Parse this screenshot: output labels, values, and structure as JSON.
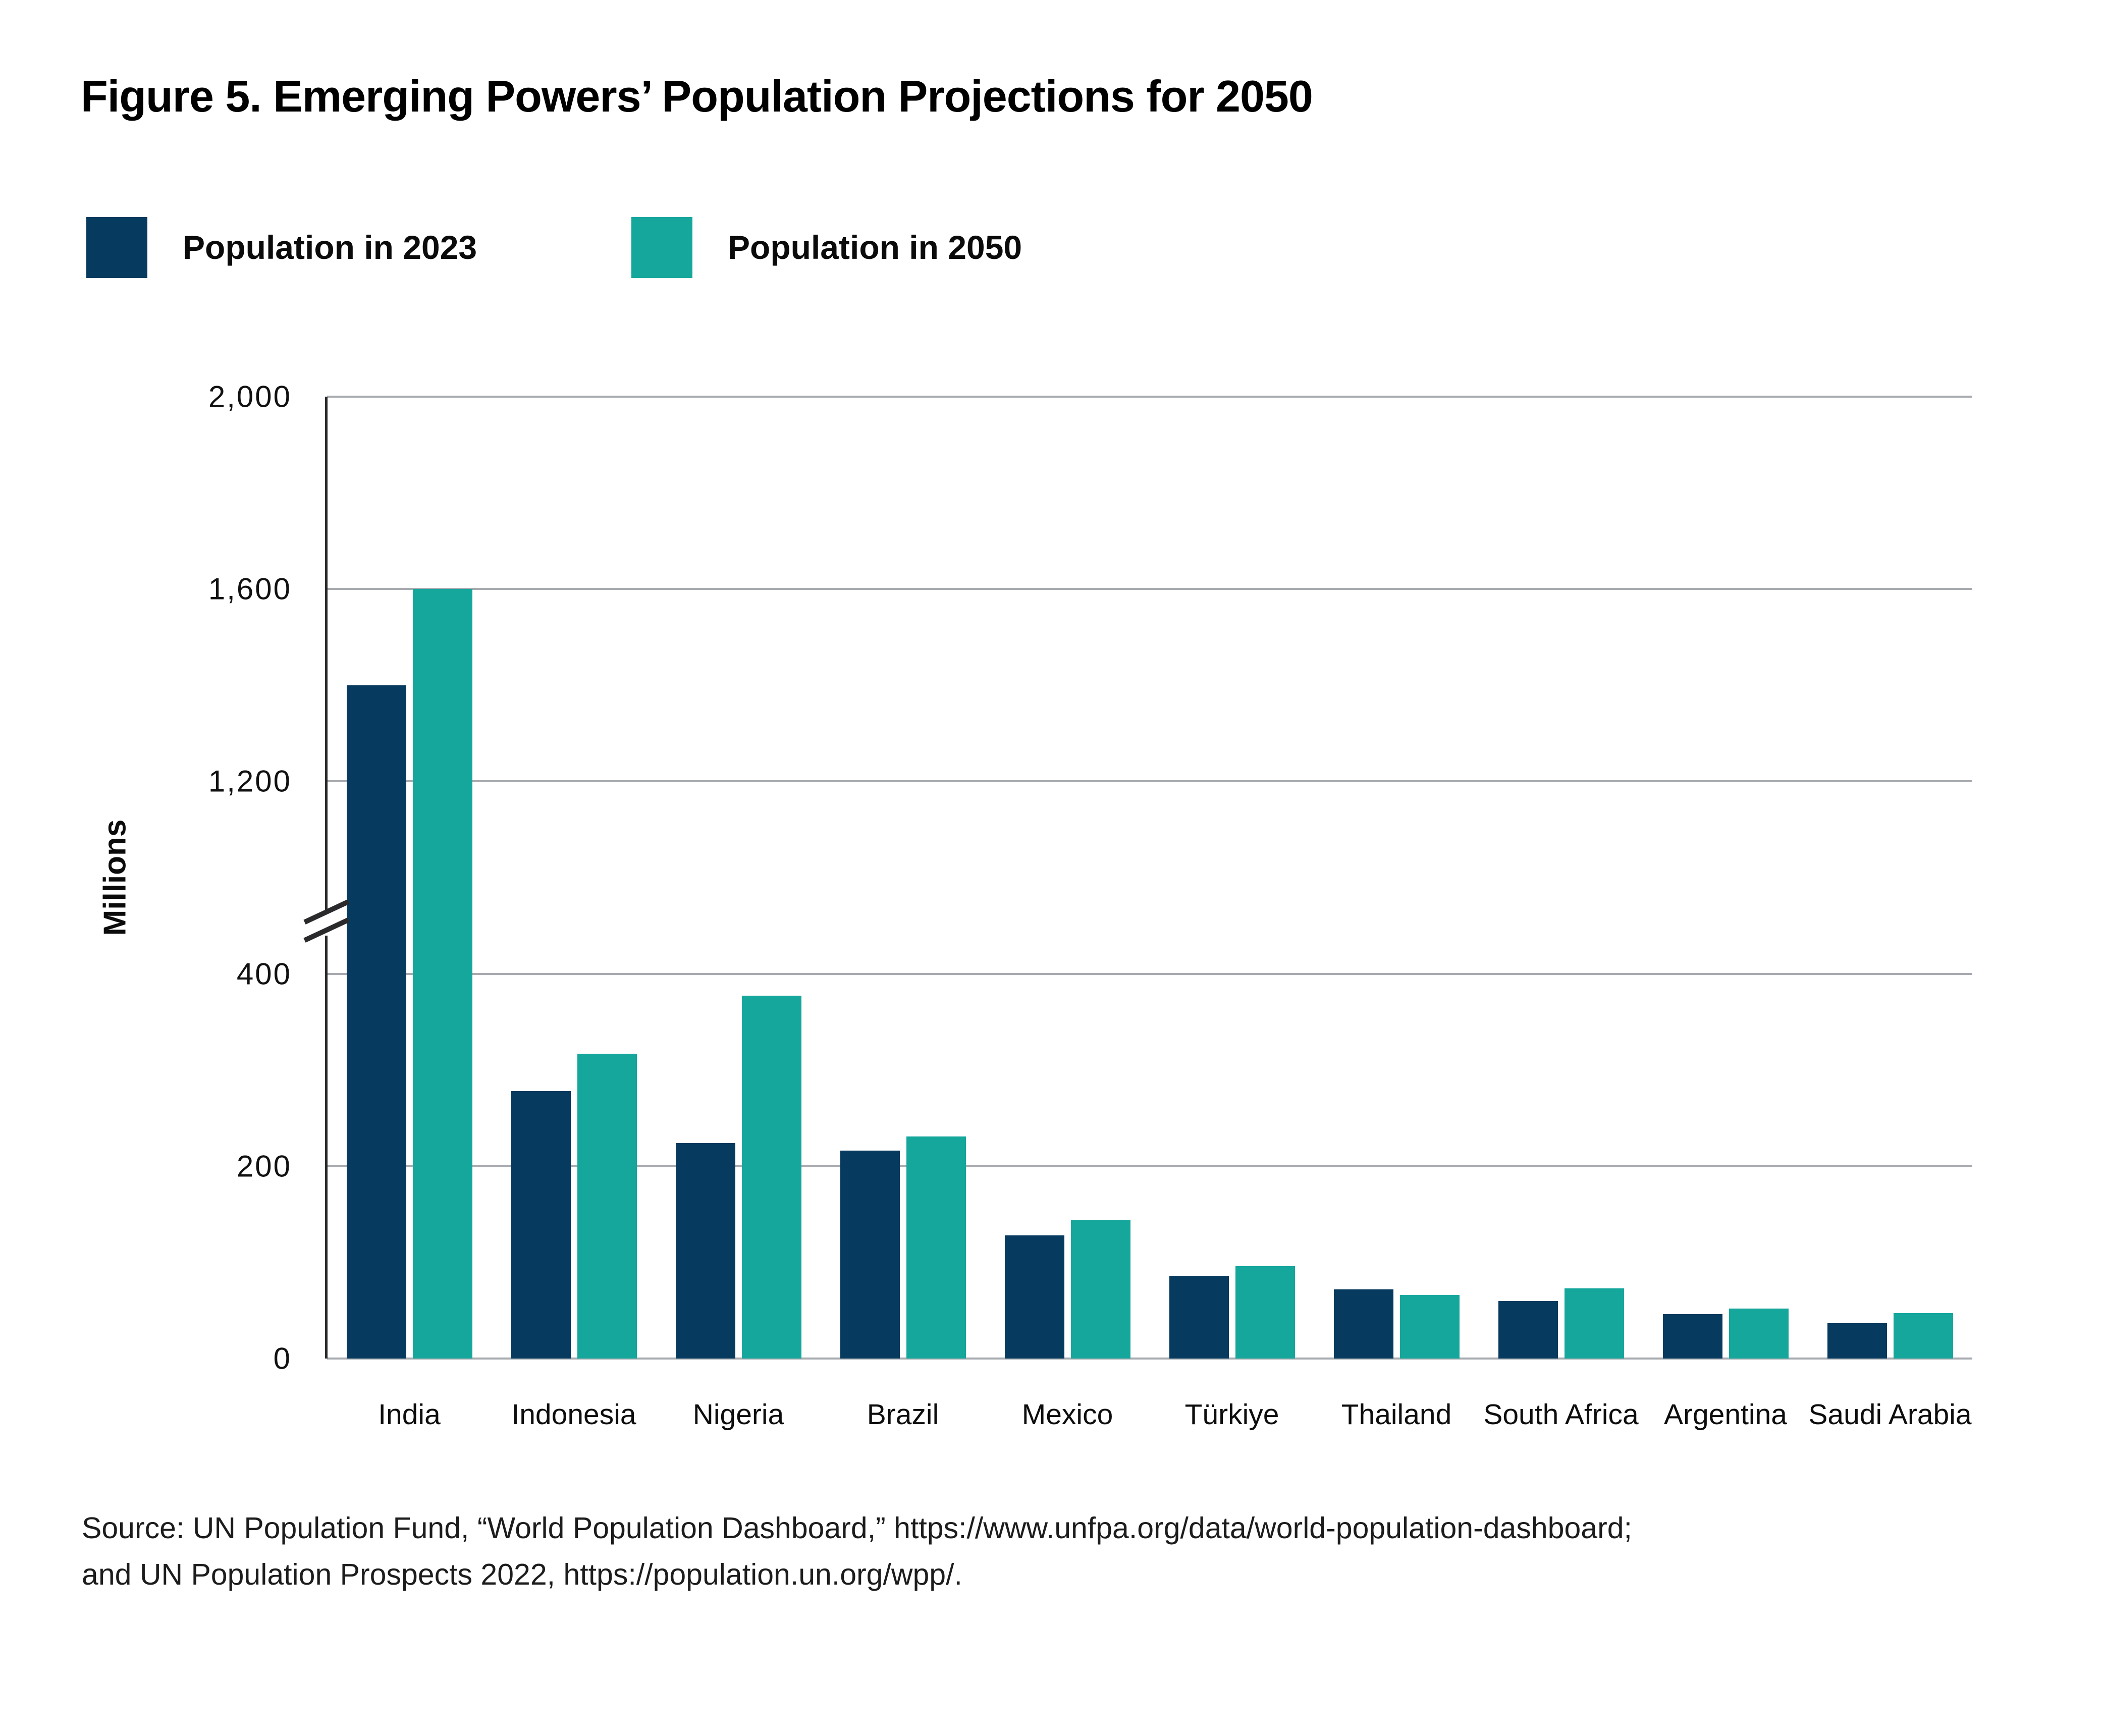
{
  "figure": {
    "title": "Figure 5. Emerging Powers’ Population Projections for 2050",
    "source_line1": "Source: UN Population Fund, “World Population Dashboard,” https://www.unfpa.org/data/world-population-dashboard;",
    "source_line2": "and UN Population Prospects 2022,  https://population.un.org/wpp/."
  },
  "colors": {
    "series_2023": "#063A5E",
    "series_2050": "#15A69C",
    "gridline": "#a7abb0",
    "axis": "#2a2a2c"
  },
  "chart_data": {
    "type": "bar",
    "title": "Figure 5. Emerging Powers’ Population Projections for 2050",
    "xlabel": "",
    "ylabel": "Millions",
    "legend_position": "top-left",
    "grid": true,
    "categories": [
      "India",
      "Indonesia",
      "Nigeria",
      "Brazil",
      "Mexico",
      "Türkiye",
      "Thailand",
      "South Africa",
      "Argentina",
      "Saudi Arabia"
    ],
    "series": [
      {
        "name": "Population in 2023",
        "color": "#063A5E",
        "values": [
          1400,
          278,
          224,
          216,
          128,
          86,
          72,
          60,
          46,
          37
        ]
      },
      {
        "name": "Population in 2050",
        "color": "#15A69C",
        "values": [
          1600,
          317,
          377,
          231,
          144,
          96,
          66,
          73,
          52,
          47
        ]
      }
    ],
    "y_axis": {
      "unit": "Millions",
      "broken": true,
      "break_between": [
        400,
        1200
      ],
      "ticks": [
        {
          "value": 2000,
          "label": "2,000"
        },
        {
          "value": 1600,
          "label": "1,600"
        },
        {
          "value": 1200,
          "label": "1,200"
        },
        {
          "value": 400,
          "label": "400"
        },
        {
          "value": 200,
          "label": "200"
        },
        {
          "value": 0,
          "label": "0"
        }
      ],
      "segments": [
        {
          "from": 0,
          "to": 400,
          "frac_from": 0.0,
          "frac_to": 0.4
        },
        {
          "from": 400,
          "to": 1200,
          "frac_from": 0.4,
          "frac_to": 0.6
        },
        {
          "from": 1200,
          "to": 2000,
          "frac_from": 0.6,
          "frac_to": 1.0
        }
      ]
    }
  }
}
